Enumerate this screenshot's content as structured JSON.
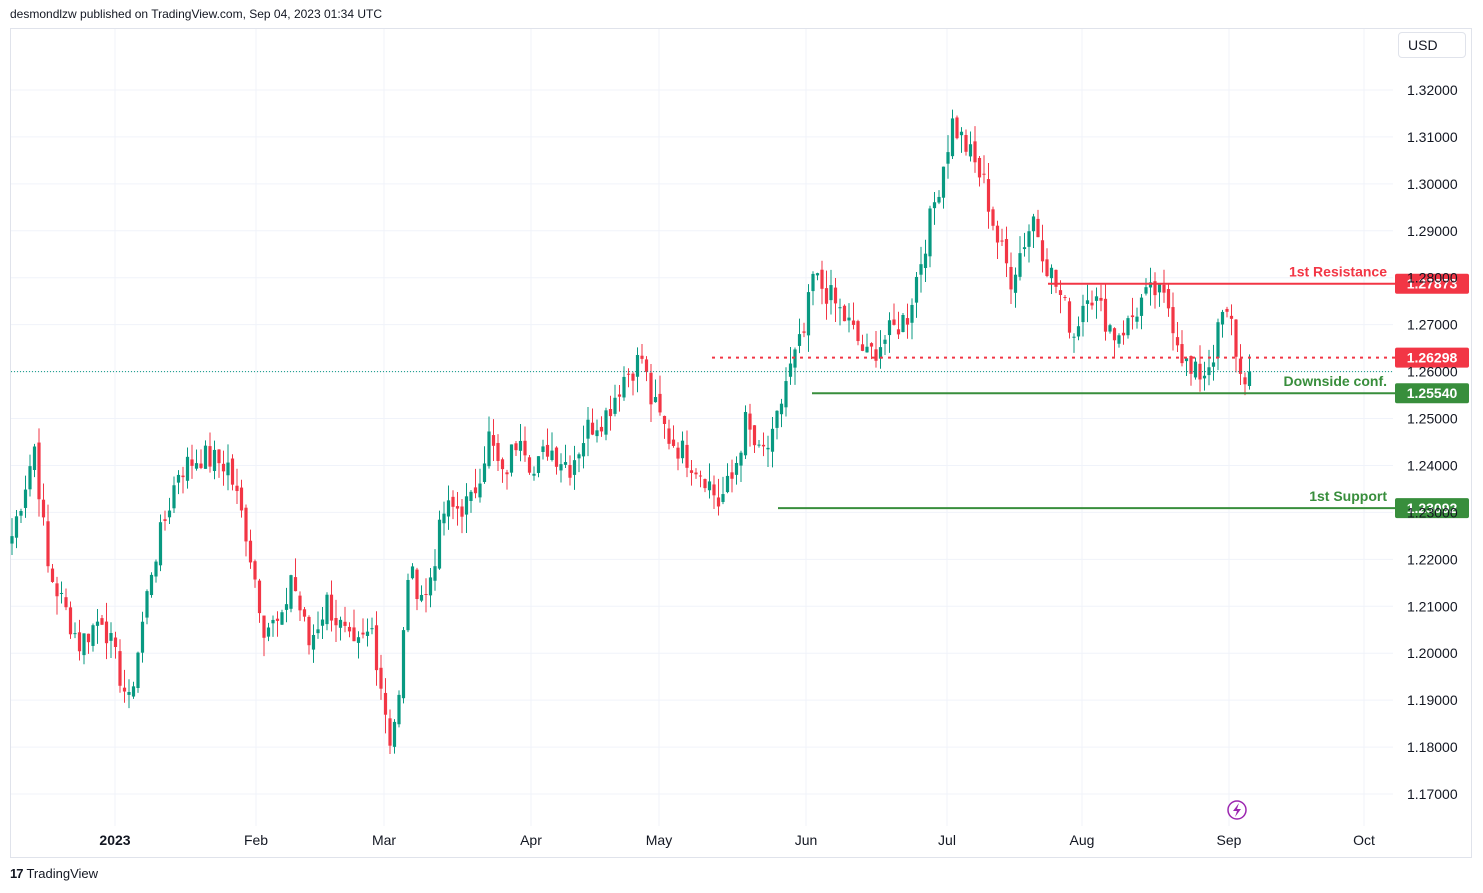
{
  "header": {
    "published": "desmondlzw published on TradingView.com, Sep 04, 2023 01:34 UTC"
  },
  "currency": "USD",
  "footer": {
    "brand": "TradingView"
  },
  "colors": {
    "up": "#089981",
    "down": "#f23645",
    "resistance": "#f23645",
    "support": "#388e3c",
    "pivot": "#f23645",
    "grid": "#f0f3fa"
  },
  "chart_data": {
    "type": "candlestick",
    "ylim": [
      1.1615,
      1.3275
    ],
    "y_ticks": [
      "1.32000",
      "1.31000",
      "1.30000",
      "1.29000",
      "1.28000",
      "1.27000",
      "1.26000",
      "1.25000",
      "1.24000",
      "1.23000",
      "1.22000",
      "1.21000",
      "1.20000",
      "1.19000",
      "1.18000",
      "1.17000"
    ],
    "x_ticks": [
      {
        "label": "2023",
        "bold": true
      },
      {
        "label": "Feb",
        "bold": false
      },
      {
        "label": "Mar",
        "bold": false
      },
      {
        "label": "Apr",
        "bold": false
      },
      {
        "label": "May",
        "bold": false
      },
      {
        "label": "Jun",
        "bold": false
      },
      {
        "label": "Jul",
        "bold": false
      },
      {
        "label": "Aug",
        "bold": false
      },
      {
        "label": "Sep",
        "bold": false
      },
      {
        "label": "Oct",
        "bold": false
      }
    ],
    "levels": [
      {
        "name": "1st Resistance",
        "value": 1.27873,
        "label": "1.27873",
        "style": "solid",
        "color": "#f23645"
      },
      {
        "name": "",
        "value": 1.26298,
        "label": "1.26298",
        "style": "dotted",
        "color": "#f23645"
      },
      {
        "name": "Downside conf.",
        "value": 1.2554,
        "label": "1.25540",
        "style": "solid",
        "color": "#388e3c"
      },
      {
        "name": "1st Support",
        "value": 1.23092,
        "label": "1.23092",
        "style": "solid",
        "color": "#388e3c"
      }
    ],
    "current_price": 1.26,
    "waypoints": [
      [
        0,
        1.225
      ],
      [
        5,
        1.244
      ],
      [
        8,
        1.218
      ],
      [
        15,
        1.202
      ],
      [
        20,
        1.208
      ],
      [
        26,
        1.189
      ],
      [
        31,
        1.218
      ],
      [
        37,
        1.239
      ],
      [
        42,
        1.242
      ],
      [
        48,
        1.24
      ],
      [
        52,
        1.226
      ],
      [
        56,
        1.206
      ],
      [
        60,
        1.206
      ],
      [
        62,
        1.217
      ],
      [
        66,
        1.202
      ],
      [
        70,
        1.211
      ],
      [
        76,
        1.2
      ],
      [
        80,
        1.205
      ],
      [
        84,
        1.182
      ],
      [
        86,
        1.19
      ],
      [
        88,
        1.217
      ],
      [
        92,
        1.212
      ],
      [
        96,
        1.23
      ],
      [
        102,
        1.232
      ],
      [
        106,
        1.246
      ],
      [
        109,
        1.237
      ],
      [
        113,
        1.248
      ],
      [
        116,
        1.238
      ],
      [
        119,
        1.244
      ],
      [
        124,
        1.24
      ],
      [
        128,
        1.248
      ],
      [
        132,
        1.251
      ],
      [
        136,
        1.259
      ],
      [
        140,
        1.263
      ],
      [
        142,
        1.254
      ],
      [
        146,
        1.246
      ],
      [
        150,
        1.242
      ],
      [
        154,
        1.238
      ],
      [
        157,
        1.232
      ],
      [
        160,
        1.237
      ],
      [
        163,
        1.249
      ],
      [
        166,
        1.242
      ],
      [
        169,
        1.245
      ],
      [
        172,
        1.258
      ],
      [
        176,
        1.268
      ],
      [
        178,
        1.28
      ],
      [
        181,
        1.277
      ],
      [
        186,
        1.27
      ],
      [
        190,
        1.263
      ],
      [
        195,
        1.268
      ],
      [
        199,
        1.272
      ],
      [
        203,
        1.288
      ],
      [
        206,
        1.3
      ],
      [
        209,
        1.313
      ],
      [
        212,
        1.308
      ],
      [
        216,
        1.3
      ],
      [
        219,
        1.288
      ],
      [
        222,
        1.28
      ],
      [
        225,
        1.288
      ],
      [
        227,
        1.293
      ],
      [
        230,
        1.283
      ],
      [
        233,
        1.276
      ],
      [
        236,
        1.268
      ],
      [
        239,
        1.278
      ],
      [
        242,
        1.273
      ],
      [
        245,
        1.268
      ],
      [
        248,
        1.27
      ],
      [
        251,
        1.275
      ],
      [
        254,
        1.277
      ],
      [
        257,
        1.274
      ],
      [
        260,
        1.264
      ],
      [
        262,
        1.259
      ],
      [
        265,
        1.26
      ],
      [
        267,
        1.264
      ],
      [
        269,
        1.272
      ],
      [
        271,
        1.27
      ],
      [
        273,
        1.259
      ],
      [
        275,
        1.26
      ]
    ]
  }
}
